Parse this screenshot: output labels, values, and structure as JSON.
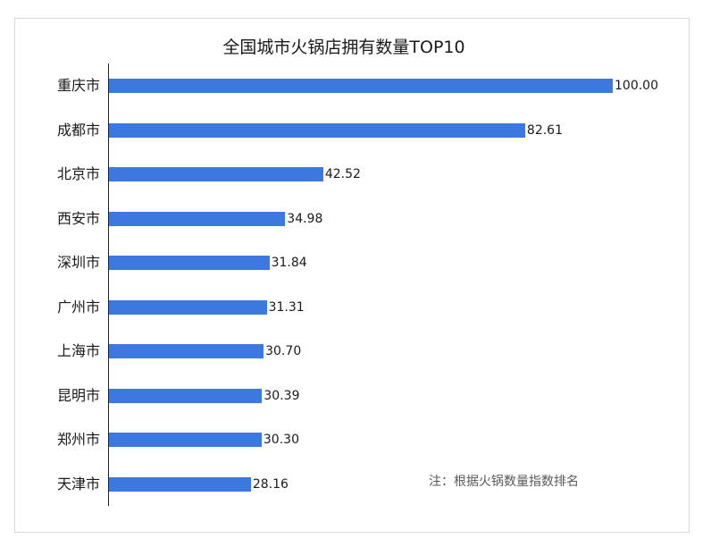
{
  "chart_data": {
    "type": "bar",
    "orientation": "horizontal",
    "title": "全国城市火锅店拥有数量TOP10",
    "categories": [
      "重庆市",
      "成都市",
      "北京市",
      "西安市",
      "深圳市",
      "广州市",
      "上海市",
      "昆明市",
      "郑州市",
      "天津市"
    ],
    "values": [
      100.0,
      82.61,
      42.52,
      34.98,
      31.84,
      31.31,
      30.7,
      30.39,
      30.3,
      28.16
    ],
    "value_labels": [
      "100.00",
      "82.61",
      "42.52",
      "34.98",
      "31.84",
      "31.31",
      "30.70",
      "30.39",
      "30.30",
      "28.16"
    ],
    "xlim": [
      0,
      100
    ],
    "bar_color": "#3d78e0",
    "grid": false,
    "note": "注：根据火锅数量指数排名"
  }
}
